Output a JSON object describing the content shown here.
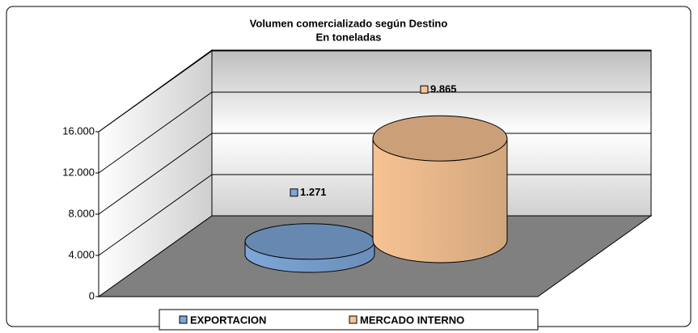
{
  "chart_data": {
    "type": "bar",
    "title": "Volumen comercializado según Destino",
    "subtitle": "En toneladas",
    "categories": [
      null
    ],
    "series": [
      {
        "name": "EXPORTACION",
        "color": "#7ea7d8",
        "values": [
          1271
        ],
        "value_labels": [
          "1.271"
        ]
      },
      {
        "name": "MERCADO INTERNO",
        "color": "#f7c393",
        "values": [
          9865
        ],
        "value_labels": [
          "9.865"
        ]
      }
    ],
    "ylim": [
      0,
      16000
    ],
    "yticks": [
      0,
      {
        "value": 4000,
        "label": "4.000"
      },
      {
        "value": 8000,
        "label": "8.000"
      },
      {
        "value": 12000,
        "label": "12.000"
      },
      {
        "value": 16000,
        "label": "16.000"
      }
    ],
    "grid": true,
    "legend": "bottom"
  }
}
